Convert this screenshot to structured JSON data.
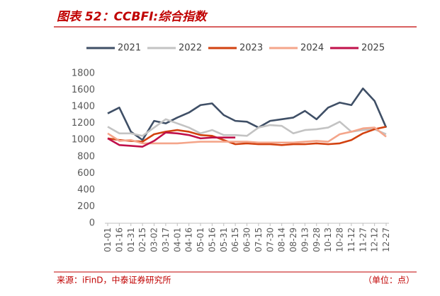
{
  "chart_data": {
    "type": "line",
    "title": "图表 52：CCBFI:综合指数",
    "source": "来源：iFinD，中泰证券研究所",
    "unit_note": "（单位：点）",
    "categories": [
      "01-01",
      "01-16",
      "01-31",
      "02-15",
      "03-02",
      "03-17",
      "04-01",
      "04-16",
      "05-01",
      "05-16",
      "05-31",
      "06-15",
      "06-30",
      "07-15",
      "07-30",
      "08-14",
      "08-29",
      "09-13",
      "09-28",
      "10-13",
      "10-28",
      "11-12",
      "11-27",
      "12-12",
      "12-27"
    ],
    "series": [
      {
        "name": "2021",
        "color": "#3f4f66",
        "values": [
          1320,
          1390,
          1100,
          1000,
          1230,
          1200,
          1270,
          1330,
          1420,
          1440,
          1300,
          1230,
          1220,
          1150,
          1230,
          1250,
          1270,
          1350,
          1250,
          1390,
          1450,
          1420,
          1620,
          1470,
          1150
        ]
      },
      {
        "name": "2022",
        "color": "#c3c3c3",
        "values": [
          1160,
          1080,
          1080,
          1050,
          1150,
          1250,
          1200,
          1150,
          1080,
          1120,
          1060,
          1060,
          1050,
          1150,
          1180,
          1170,
          1080,
          1120,
          1130,
          1150,
          1220,
          1100,
          1120,
          1130,
          1070
        ]
      },
      {
        "name": "2023",
        "color": "#d2410f",
        "values": [
          1020,
          1000,
          990,
          980,
          1070,
          1100,
          1120,
          1100,
          1060,
          1050,
          1000,
          950,
          960,
          950,
          950,
          940,
          950,
          950,
          960,
          950,
          960,
          1000,
          1080,
          1130,
          1160
        ]
      },
      {
        "name": "2024",
        "color": "#f4a58a",
        "values": [
          1080,
          990,
          1000,
          960,
          960,
          960,
          960,
          970,
          980,
          980,
          980,
          980,
          980,
          970,
          970,
          970,
          970,
          980,
          990,
          980,
          1070,
          1100,
          1140,
          1150,
          1040
        ]
      },
      {
        "name": "2025",
        "color": "#c0104a",
        "values": [
          1020,
          940,
          930,
          920,
          990,
          1090,
          1080,
          1060,
          1020,
          1030,
          1030,
          1030,
          null,
          null,
          null,
          null,
          null,
          null,
          null,
          null,
          null,
          null,
          null,
          null,
          null
        ]
      }
    ],
    "ylim": [
      0,
      1800
    ],
    "yticks": [
      0,
      200,
      400,
      600,
      800,
      1000,
      1200,
      1400,
      1600,
      1800
    ],
    "grid": false
  }
}
